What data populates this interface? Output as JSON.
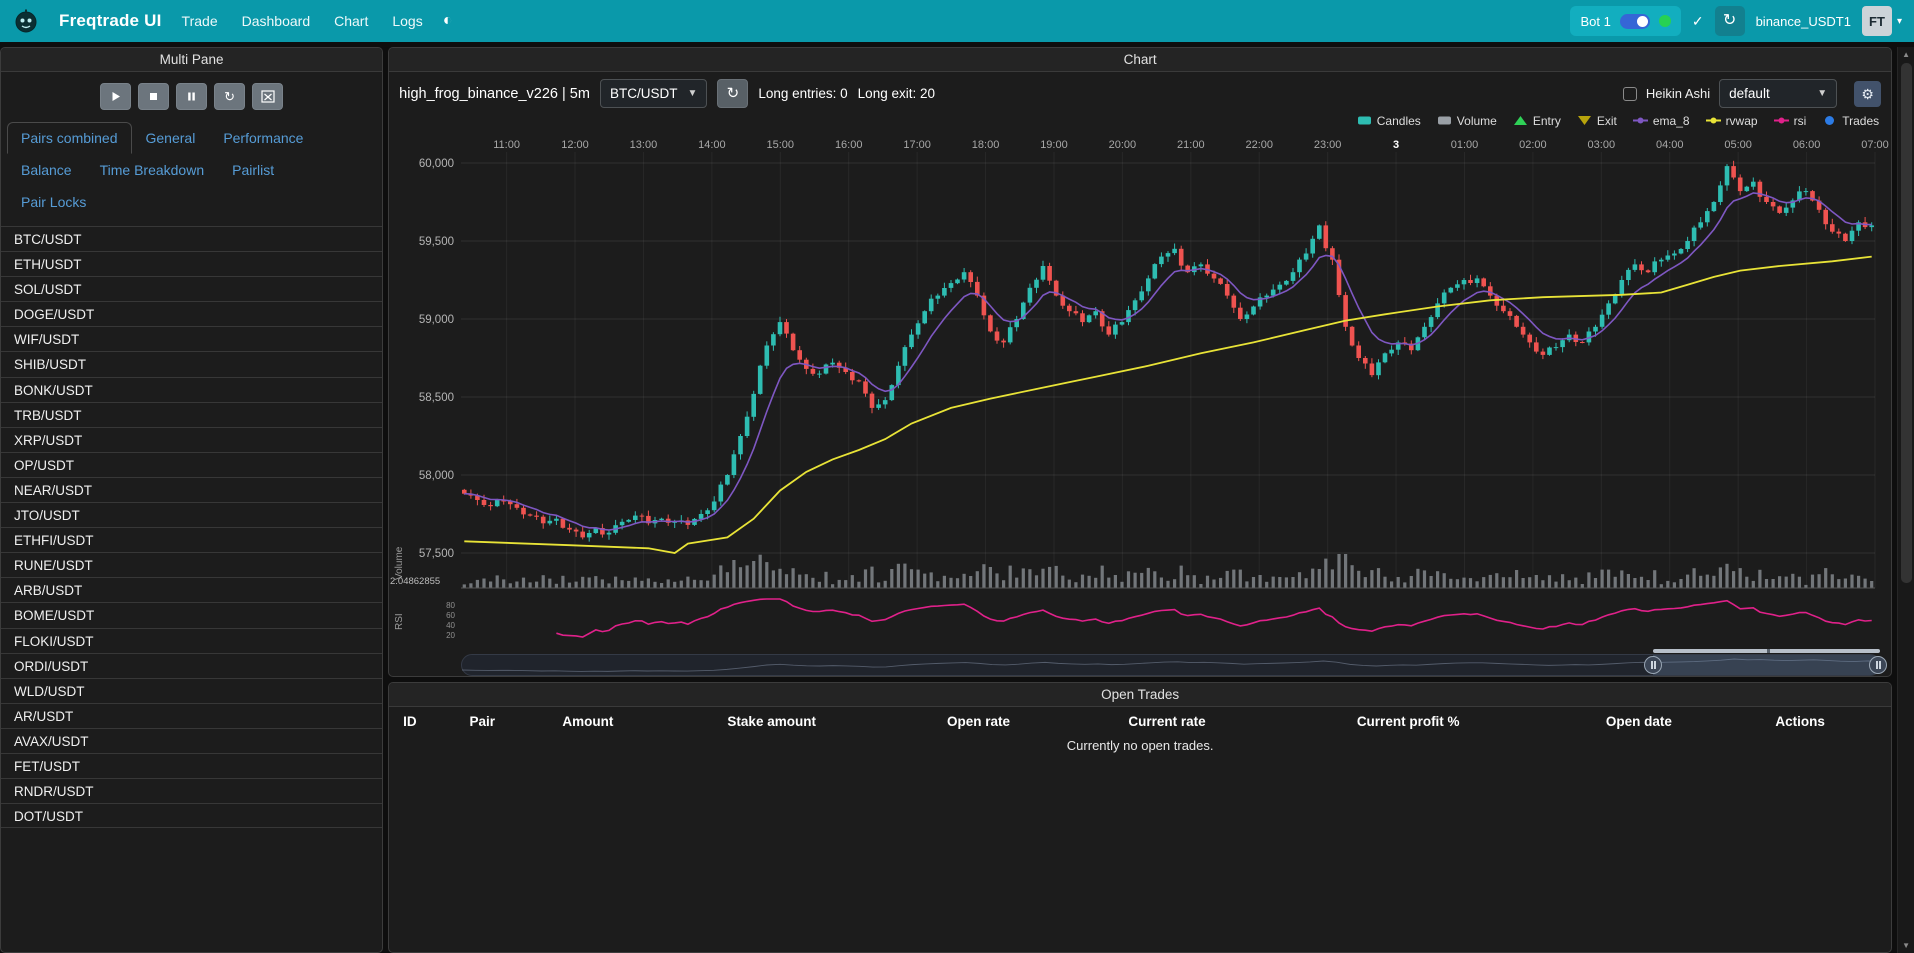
{
  "navbar": {
    "brand": "Freqtrade UI",
    "items": [
      "Trade",
      "Dashboard",
      "Chart",
      "Logs"
    ],
    "bot_name": "Bot 1",
    "bot_online": true,
    "exchange": "binance_USDT1",
    "avatar": "FT"
  },
  "multi_pane": {
    "title": "Multi Pane",
    "tabs": [
      "Pairs combined",
      "General",
      "Performance",
      "Balance",
      "Time Breakdown",
      "Pairlist",
      "Pair Locks"
    ],
    "active_tab": "Pairs combined",
    "pairs": [
      "BTC/USDT",
      "ETH/USDT",
      "SOL/USDT",
      "DOGE/USDT",
      "WIF/USDT",
      "SHIB/USDT",
      "BONK/USDT",
      "TRB/USDT",
      "XRP/USDT",
      "OP/USDT",
      "NEAR/USDT",
      "JTO/USDT",
      "ETHFI/USDT",
      "RUNE/USDT",
      "ARB/USDT",
      "BOME/USDT",
      "FLOKI/USDT",
      "ORDI/USDT",
      "WLD/USDT",
      "AR/USDT",
      "AVAX/USDT",
      "FET/USDT",
      "RNDR/USDT",
      "DOT/USDT"
    ]
  },
  "chart_panel": {
    "title": "Chart",
    "strategy_label": "high_frog_binance_v226 | 5m",
    "pair_select": "BTC/USDT",
    "entries_text": "Long entries: 0",
    "exit_text": "Long exit: 20",
    "heikin_ashi_label": "Heikin Ashi",
    "heikin_ashi_checked": false,
    "plot_config_select": "default",
    "legend": [
      {
        "label": "Candles",
        "marker": "box",
        "color": "#2ebdb2"
      },
      {
        "label": "Volume",
        "marker": "box",
        "color": "#9aa0a6"
      },
      {
        "label": "Entry",
        "marker": "triangle-up",
        "color": "#2fd157"
      },
      {
        "label": "Exit",
        "marker": "triangle-down",
        "color": "#b8a40c"
      },
      {
        "label": "ema_8",
        "marker": "line",
        "color": "#7e57c2"
      },
      {
        "label": "rvwap",
        "marker": "line",
        "color": "#e8e337"
      },
      {
        "label": "rsi",
        "marker": "line",
        "color": "#e0218a"
      },
      {
        "label": "Trades",
        "marker": "circle",
        "color": "#2c7be5"
      }
    ]
  },
  "chart_data": {
    "type": "candlestick",
    "pair": "BTC/USDT",
    "timeframe": "5m",
    "time_labels": [
      "11:00",
      "12:00",
      "13:00",
      "14:00",
      "15:00",
      "16:00",
      "17:00",
      "18:00",
      "19:00",
      "20:00",
      "21:00",
      "22:00",
      "23:00",
      "3",
      "01:00",
      "02:00",
      "03:00",
      "04:00",
      "05:00",
      "06:00",
      "07:00"
    ],
    "bold_time_label": "3",
    "price_ticks": [
      60000,
      59500,
      59000,
      58500,
      58000,
      57500
    ],
    "price_tick_labels": [
      "60,000",
      "59,500",
      "59,000",
      "58,500",
      "58,000",
      "57,500"
    ],
    "ylim": [
      57380,
      60120
    ],
    "closes": [
      57880,
      57840,
      57800,
      57830,
      57790,
      57740,
      57690,
      57720,
      57650,
      57600,
      57660,
      57630,
      57700,
      57740,
      57690,
      57720,
      57700,
      57680,
      57750,
      57830,
      58000,
      58250,
      58520,
      58830,
      58980,
      58800,
      58680,
      58650,
      58720,
      58660,
      58600,
      58430,
      58480,
      58700,
      58900,
      59050,
      59150,
      59230,
      59300,
      59150,
      58920,
      58850,
      59000,
      59200,
      59340,
      59150,
      59050,
      58980,
      59050,
      58900,
      58980,
      59120,
      59260,
      59400,
      59450,
      59300,
      59350,
      59260,
      59150,
      59000,
      59080,
      59150,
      59220,
      59300,
      59420,
      59600,
      59380,
      58950,
      58750,
      58640,
      58780,
      58850,
      58800,
      58950,
      59100,
      59200,
      59250,
      59260,
      59150,
      59050,
      58950,
      58850,
      58770,
      58820,
      58900,
      58850,
      58950,
      59100,
      59250,
      59350,
      59300,
      59380,
      59420,
      59500,
      59620,
      59750,
      59980,
      59820,
      59880,
      59750,
      59680,
      59760,
      59820,
      59700,
      59560,
      59500,
      59620,
      59600
    ],
    "rvwap_anchors": [
      [
        0,
        57575
      ],
      [
        8,
        57550
      ],
      [
        14,
        57530
      ],
      [
        16,
        57500
      ],
      [
        17,
        57560
      ],
      [
        20,
        57600
      ],
      [
        22,
        57720
      ],
      [
        24,
        57900
      ],
      [
        26,
        58020
      ],
      [
        28,
        58100
      ],
      [
        30,
        58160
      ],
      [
        32,
        58230
      ],
      [
        34,
        58330
      ],
      [
        37,
        58430
      ],
      [
        40,
        58490
      ],
      [
        44,
        58560
      ],
      [
        48,
        58630
      ],
      [
        52,
        58700
      ],
      [
        56,
        58780
      ],
      [
        60,
        58850
      ],
      [
        64,
        58930
      ],
      [
        67,
        58990
      ],
      [
        70,
        59030
      ],
      [
        74,
        59080
      ],
      [
        78,
        59120
      ],
      [
        82,
        59140
      ],
      [
        88,
        59155
      ],
      [
        91,
        59170
      ],
      [
        93,
        59220
      ],
      [
        95,
        59270
      ],
      [
        97,
        59310
      ],
      [
        100,
        59340
      ],
      [
        104,
        59370
      ],
      [
        107,
        59400
      ]
    ],
    "indicators": [
      {
        "name": "ema_8",
        "type": "ema",
        "period": 8,
        "color": "#7e57c2"
      },
      {
        "name": "rvwap",
        "type": "line",
        "color": "#e8e337"
      },
      {
        "name": "rsi",
        "type": "rsi",
        "period": 14,
        "color": "#e0218a"
      }
    ],
    "volume_pane_label": "Volume",
    "volume_axis_label": "2.04862855",
    "rsi_pane_label": "RSI",
    "rsi_ticks": [
      80,
      60,
      40,
      20
    ],
    "colors": {
      "up": "#2ebdb2",
      "down": "#ef5350",
      "volume": "#8f9499",
      "ema": "#7e57c2",
      "rvwap": "#e8e337",
      "rsi": "#e0218a",
      "grid": "rgba(255,255,255,0.09)"
    }
  },
  "open_trades": {
    "title": "Open Trades",
    "columns": [
      "ID",
      "Pair",
      "Amount",
      "Stake amount",
      "Open rate",
      "Current rate",
      "Current profit %",
      "Open date",
      "Actions"
    ],
    "empty_text": "Currently no open trades."
  }
}
